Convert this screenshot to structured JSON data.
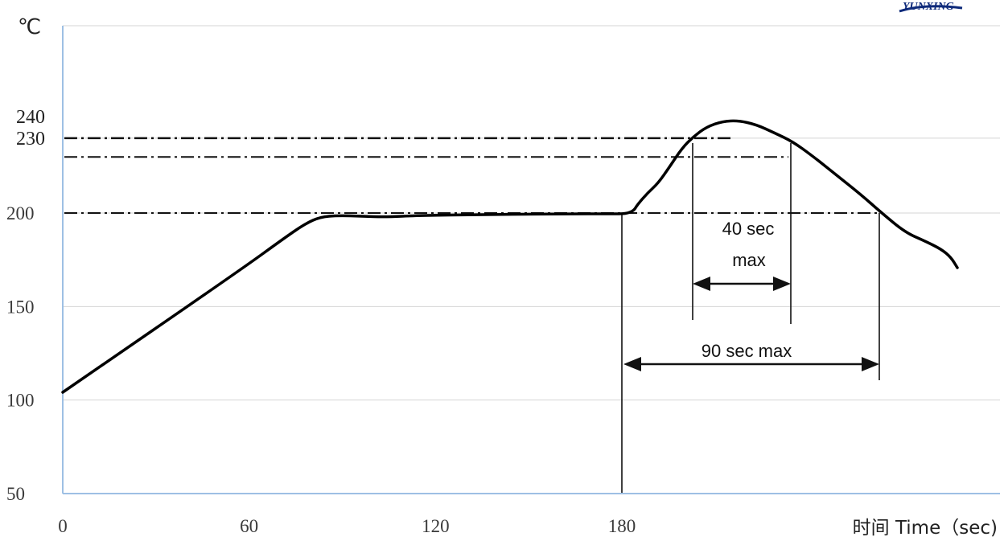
{
  "logo_text": "YUNXING",
  "chart_data": {
    "type": "line",
    "y_unit": "℃",
    "xlabel": "时间 Time（sec)",
    "xlim": [
      0,
      282
    ],
    "ylim": [
      50,
      290
    ],
    "x_ticks": [
      0,
      60,
      120,
      180
    ],
    "x_tick_labels": [
      "0",
      "60",
      "120",
      "180"
    ],
    "y_ticks": [
      50,
      100,
      150,
      200
    ],
    "y_tick_labels": [
      "50",
      "100",
      "150",
      "200"
    ],
    "y_ref_labels": [
      "240",
      "230"
    ],
    "reference_lines": [
      240,
      230,
      200
    ],
    "grid": true,
    "series": [
      {
        "x": [
          0,
          20,
          40,
          60,
          68,
          72,
          75,
          80,
          85,
          90,
          100,
          110,
          120,
          140,
          160,
          175,
          180,
          182,
          184,
          186,
          190,
          195,
          200,
          205,
          210,
          215,
          220,
          225,
          230,
          235,
          240,
          245,
          250,
          255,
          260,
          265,
          270,
          275,
          278
        ],
        "y": [
          104,
          139,
          174,
          210,
          184,
          190,
          195,
          198,
          199,
          198,
          198,
          199,
          199,
          200,
          200,
          200,
          200,
          201,
          208,
          212,
          218,
          228,
          237,
          240,
          239,
          235,
          230,
          223,
          215,
          207,
          200,
          193,
          187,
          182,
          178,
          175,
          171,
          174,
          171
        ]
      }
    ],
    "annotations": [
      {
        "text_line1": "40 sec",
        "text_line2": "max",
        "x_from": 202,
        "x_to": 234
      },
      {
        "text": "90 sec max",
        "x_from": 180,
        "x_to": 262
      }
    ]
  }
}
